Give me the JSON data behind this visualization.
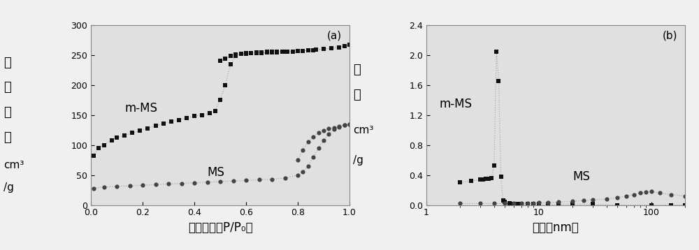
{
  "fig_width": 10.0,
  "fig_height": 3.58,
  "bg_color": "#f0f0f0",
  "plot_bg_color": "#e0e0e0",
  "line_color": "#aaaaaa",
  "marker_color_dark": "#111111",
  "marker_color_med": "#444444",
  "panel_a": {
    "label": "(a)",
    "xlabel": "相对压力（P/P₀）",
    "ylabel_line1": "吸收",
    "ylabel_line2": "体积",
    "ylabel_line3": "cm³",
    "ylabel_line4": "/g",
    "xlim": [
      0.0,
      1.0
    ],
    "ylim": [
      0,
      300
    ],
    "yticks": [
      0,
      50,
      100,
      150,
      200,
      250,
      300
    ],
    "xticks": [
      0.0,
      0.2,
      0.4,
      0.6,
      0.8,
      1.0
    ],
    "label_mms": "m-MS",
    "label_ms": "MS",
    "mms_ads_x": [
      0.01,
      0.03,
      0.05,
      0.08,
      0.1,
      0.13,
      0.16,
      0.19,
      0.22,
      0.25,
      0.28,
      0.31,
      0.34,
      0.37,
      0.4,
      0.43,
      0.46,
      0.48,
      0.5,
      0.52,
      0.54,
      0.56,
      0.58,
      0.6,
      0.62,
      0.64,
      0.66,
      0.68,
      0.7,
      0.72,
      0.75,
      0.78,
      0.82,
      0.86,
      0.9,
      0.93,
      0.96,
      0.98,
      1.0
    ],
    "mms_ads_y": [
      82,
      95,
      100,
      108,
      112,
      116,
      120,
      124,
      128,
      132,
      136,
      139,
      142,
      145,
      148,
      150,
      153,
      157,
      175,
      200,
      235,
      248,
      252,
      252,
      253,
      253,
      253,
      254,
      254,
      254,
      255,
      256,
      257,
      258,
      260,
      261,
      263,
      265,
      267
    ],
    "mms_des_x": [
      1.0,
      0.98,
      0.96,
      0.93,
      0.9,
      0.87,
      0.84,
      0.82,
      0.8,
      0.78,
      0.76,
      0.74,
      0.72,
      0.7,
      0.68,
      0.66,
      0.64,
      0.62,
      0.6,
      0.58,
      0.56,
      0.54,
      0.52,
      0.5
    ],
    "mms_des_y": [
      267,
      265,
      263,
      261,
      260,
      259,
      258,
      257,
      257,
      256,
      256,
      256,
      255,
      255,
      255,
      254,
      254,
      253,
      253,
      252,
      251,
      248,
      244,
      240
    ],
    "ms_ads_x": [
      0.01,
      0.05,
      0.1,
      0.15,
      0.2,
      0.25,
      0.3,
      0.35,
      0.4,
      0.45,
      0.5,
      0.55,
      0.6,
      0.65,
      0.7,
      0.75,
      0.8,
      0.82,
      0.84,
      0.86,
      0.88,
      0.9,
      0.92,
      0.94,
      0.96,
      0.98,
      1.0
    ],
    "ms_ads_y": [
      28,
      30,
      31,
      32,
      33,
      34,
      35,
      36,
      37,
      38,
      39,
      40,
      41,
      42,
      43,
      45,
      50,
      55,
      65,
      80,
      95,
      108,
      118,
      126,
      130,
      133,
      135
    ],
    "ms_des_x": [
      1.0,
      0.98,
      0.96,
      0.94,
      0.92,
      0.9,
      0.88,
      0.86,
      0.84,
      0.82,
      0.8
    ],
    "ms_des_y": [
      135,
      133,
      131,
      129,
      127,
      124,
      120,
      114,
      105,
      92,
      75
    ]
  },
  "panel_b": {
    "label": "(b)",
    "xlabel": "孔径（nm）",
    "ylabel_line1": "孔容",
    "ylabel_line2": "cm³",
    "ylabel_line3": "/g",
    "xlim": [
      1,
      200
    ],
    "ylim": [
      0,
      2.4
    ],
    "yticks": [
      0.0,
      0.4,
      0.8,
      1.2,
      1.6,
      2.0,
      2.4
    ],
    "label_mms": "m-MS",
    "label_ms": "MS",
    "mms_x": [
      2.0,
      2.5,
      3.0,
      3.2,
      3.4,
      3.6,
      3.8,
      4.0,
      4.2,
      4.4,
      4.6,
      4.8,
      5.0,
      5.5,
      6.0,
      6.5,
      7.0,
      8.0,
      9.0,
      10.0,
      12.0,
      15.0,
      20.0,
      30.0,
      50.0,
      100.0,
      150.0,
      200.0
    ],
    "mms_y": [
      0.3,
      0.32,
      0.34,
      0.34,
      0.35,
      0.35,
      0.36,
      0.53,
      2.04,
      1.65,
      0.38,
      0.06,
      0.04,
      0.02,
      0.01,
      0.01,
      0.01,
      0.01,
      0.01,
      0.01,
      0.01,
      0.01,
      0.01,
      0.01,
      0.0,
      0.0,
      0.0,
      0.0
    ],
    "ms_x": [
      2.0,
      3.0,
      4.0,
      5.0,
      6.0,
      7.0,
      8.0,
      9.0,
      10.0,
      12.0,
      15.0,
      20.0,
      25.0,
      30.0,
      40.0,
      50.0,
      60.0,
      70.0,
      80.0,
      90.0,
      100.0,
      120.0,
      150.0,
      200.0
    ],
    "ms_y": [
      0.02,
      0.02,
      0.02,
      0.02,
      0.02,
      0.02,
      0.02,
      0.02,
      0.03,
      0.03,
      0.04,
      0.05,
      0.06,
      0.07,
      0.08,
      0.1,
      0.12,
      0.14,
      0.16,
      0.17,
      0.18,
      0.16,
      0.14,
      0.12
    ]
  }
}
